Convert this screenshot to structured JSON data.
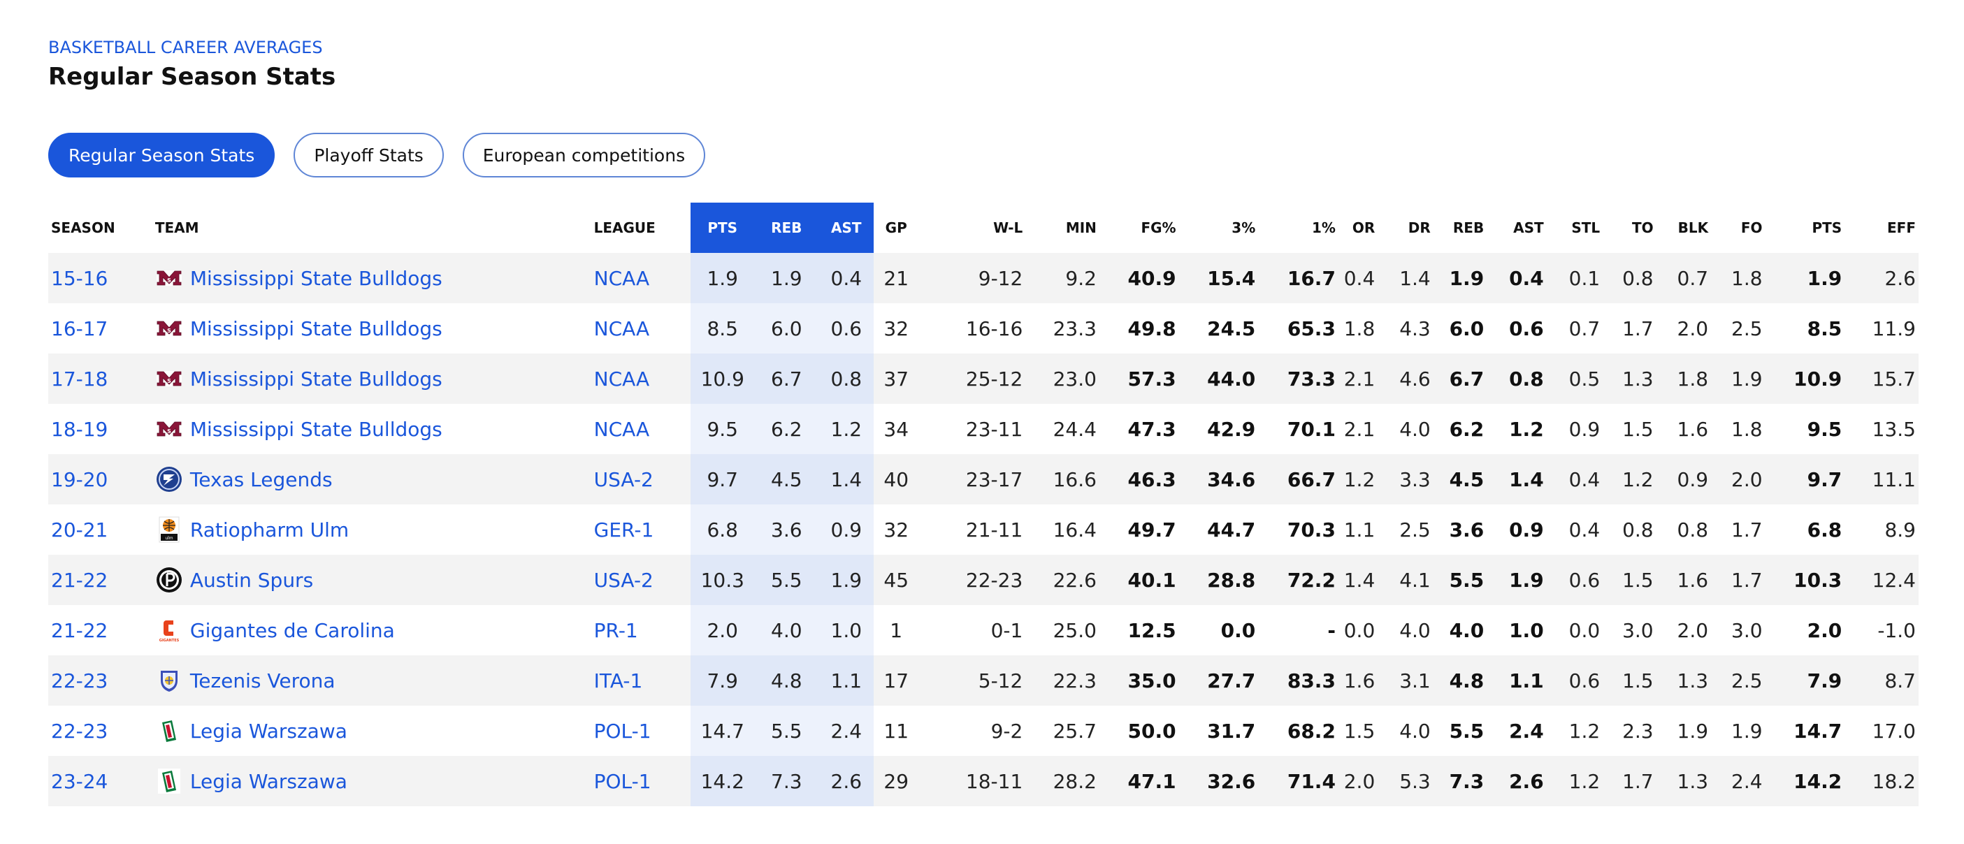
{
  "header": {
    "eyebrow": "BASKETBALL CAREER AVERAGES",
    "title": "Regular Season Stats"
  },
  "tabs": [
    {
      "label": "Regular Season Stats",
      "active": true
    },
    {
      "label": "Playoff Stats",
      "active": false
    },
    {
      "label": "European competitions",
      "active": false
    }
  ],
  "columns": [
    "SEASON",
    "TEAM",
    "LEAGUE",
    "PTS",
    "REB",
    "AST",
    "GP",
    "W-L",
    "MIN",
    "FG%",
    "3%",
    "1%",
    "OR",
    "DR",
    "REB",
    "AST",
    "STL",
    "TO",
    "BLK",
    "FO",
    "PTS",
    "EFF"
  ],
  "rows": [
    {
      "season": "15-16",
      "team": "Mississippi State Bulldogs",
      "logo": "msu-logo",
      "league": "NCAA",
      "pts_h": "1.9",
      "reb_h": "1.9",
      "ast_h": "0.4",
      "gp": "21",
      "wl": "9-12",
      "min": "9.2",
      "fg": "40.9",
      "three": "15.4",
      "one": "16.7",
      "or": "0.4",
      "dr": "1.4",
      "reb": "1.9",
      "ast": "0.4",
      "stl": "0.1",
      "to": "0.8",
      "blk": "0.7",
      "fo": "1.8",
      "pts": "1.9",
      "eff": "2.6"
    },
    {
      "season": "16-17",
      "team": "Mississippi State Bulldogs",
      "logo": "msu-logo",
      "league": "NCAA",
      "pts_h": "8.5",
      "reb_h": "6.0",
      "ast_h": "0.6",
      "gp": "32",
      "wl": "16-16",
      "min": "23.3",
      "fg": "49.8",
      "three": "24.5",
      "one": "65.3",
      "or": "1.8",
      "dr": "4.3",
      "reb": "6.0",
      "ast": "0.6",
      "stl": "0.7",
      "to": "1.7",
      "blk": "2.0",
      "fo": "2.5",
      "pts": "8.5",
      "eff": "11.9"
    },
    {
      "season": "17-18",
      "team": "Mississippi State Bulldogs",
      "logo": "msu-logo",
      "league": "NCAA",
      "pts_h": "10.9",
      "reb_h": "6.7",
      "ast_h": "0.8",
      "gp": "37",
      "wl": "25-12",
      "min": "23.0",
      "fg": "57.3",
      "three": "44.0",
      "one": "73.3",
      "or": "2.1",
      "dr": "4.6",
      "reb": "6.7",
      "ast": "0.8",
      "stl": "0.5",
      "to": "1.3",
      "blk": "1.8",
      "fo": "1.9",
      "pts": "10.9",
      "eff": "15.7"
    },
    {
      "season": "18-19",
      "team": "Mississippi State Bulldogs",
      "logo": "msu-logo",
      "league": "NCAA",
      "pts_h": "9.5",
      "reb_h": "6.2",
      "ast_h": "1.2",
      "gp": "34",
      "wl": "23-11",
      "min": "24.4",
      "fg": "47.3",
      "three": "42.9",
      "one": "70.1",
      "or": "2.1",
      "dr": "4.0",
      "reb": "6.2",
      "ast": "1.2",
      "stl": "0.9",
      "to": "1.5",
      "blk": "1.6",
      "fo": "1.8",
      "pts": "9.5",
      "eff": "13.5"
    },
    {
      "season": "19-20",
      "team": "Texas Legends",
      "logo": "legends-logo",
      "league": "USA-2",
      "pts_h": "9.7",
      "reb_h": "4.5",
      "ast_h": "1.4",
      "gp": "40",
      "wl": "23-17",
      "min": "16.6",
      "fg": "46.3",
      "three": "34.6",
      "one": "66.7",
      "or": "1.2",
      "dr": "3.3",
      "reb": "4.5",
      "ast": "1.4",
      "stl": "0.4",
      "to": "1.2",
      "blk": "0.9",
      "fo": "2.0",
      "pts": "9.7",
      "eff": "11.1"
    },
    {
      "season": "20-21",
      "team": "Ratiopharm Ulm",
      "logo": "ulm-logo",
      "league": "GER-1",
      "pts_h": "6.8",
      "reb_h": "3.6",
      "ast_h": "0.9",
      "gp": "32",
      "wl": "21-11",
      "min": "16.4",
      "fg": "49.7",
      "three": "44.7",
      "one": "70.3",
      "or": "1.1",
      "dr": "2.5",
      "reb": "3.6",
      "ast": "0.9",
      "stl": "0.4",
      "to": "0.8",
      "blk": "0.8",
      "fo": "1.7",
      "pts": "6.8",
      "eff": "8.9"
    },
    {
      "season": "21-22",
      "team": "Austin Spurs",
      "logo": "spurs-logo",
      "league": "USA-2",
      "pts_h": "10.3",
      "reb_h": "5.5",
      "ast_h": "1.9",
      "gp": "45",
      "wl": "22-23",
      "min": "22.6",
      "fg": "40.1",
      "three": "28.8",
      "one": "72.2",
      "or": "1.4",
      "dr": "4.1",
      "reb": "5.5",
      "ast": "1.9",
      "stl": "0.6",
      "to": "1.5",
      "blk": "1.6",
      "fo": "1.7",
      "pts": "10.3",
      "eff": "12.4"
    },
    {
      "season": "21-22",
      "team": "Gigantes de Carolina",
      "logo": "gigantes-logo",
      "league": "PR-1",
      "pts_h": "2.0",
      "reb_h": "4.0",
      "ast_h": "1.0",
      "gp": "1",
      "wl": "0-1",
      "min": "25.0",
      "fg": "12.5",
      "three": "0.0",
      "one": "-",
      "or": "0.0",
      "dr": "4.0",
      "reb": "4.0",
      "ast": "1.0",
      "stl": "0.0",
      "to": "3.0",
      "blk": "2.0",
      "fo": "3.0",
      "pts": "2.0",
      "eff": "-1.0"
    },
    {
      "season": "22-23",
      "team": "Tezenis Verona",
      "logo": "verona-logo",
      "league": "ITA-1",
      "pts_h": "7.9",
      "reb_h": "4.8",
      "ast_h": "1.1",
      "gp": "17",
      "wl": "5-12",
      "min": "22.3",
      "fg": "35.0",
      "three": "27.7",
      "one": "83.3",
      "or": "1.6",
      "dr": "3.1",
      "reb": "4.8",
      "ast": "1.1",
      "stl": "0.6",
      "to": "1.5",
      "blk": "1.3",
      "fo": "2.5",
      "pts": "7.9",
      "eff": "8.7"
    },
    {
      "season": "22-23",
      "team": "Legia Warszawa",
      "logo": "legia-logo",
      "league": "POL-1",
      "pts_h": "14.7",
      "reb_h": "5.5",
      "ast_h": "2.4",
      "gp": "11",
      "wl": "9-2",
      "min": "25.7",
      "fg": "50.0",
      "three": "31.7",
      "one": "68.2",
      "or": "1.5",
      "dr": "4.0",
      "reb": "5.5",
      "ast": "2.4",
      "stl": "1.2",
      "to": "2.3",
      "blk": "1.9",
      "fo": "1.9",
      "pts": "14.7",
      "eff": "17.0"
    },
    {
      "season": "23-24",
      "team": "Legia Warszawa",
      "logo": "legia-logo",
      "league": "POL-1",
      "pts_h": "14.2",
      "reb_h": "7.3",
      "ast_h": "2.6",
      "gp": "29",
      "wl": "18-11",
      "min": "28.2",
      "fg": "47.1",
      "three": "32.6",
      "one": "71.4",
      "or": "2.0",
      "dr": "5.3",
      "reb": "7.3",
      "ast": "2.6",
      "stl": "1.2",
      "to": "1.7",
      "blk": "1.3",
      "fo": "2.4",
      "pts": "14.2",
      "eff": "18.2"
    }
  ],
  "colors": {
    "accent": "#1a56db",
    "stripe": "#f3f3f3",
    "highlight_odd": "#e0e8f8",
    "highlight_even": "#edf2fc"
  }
}
